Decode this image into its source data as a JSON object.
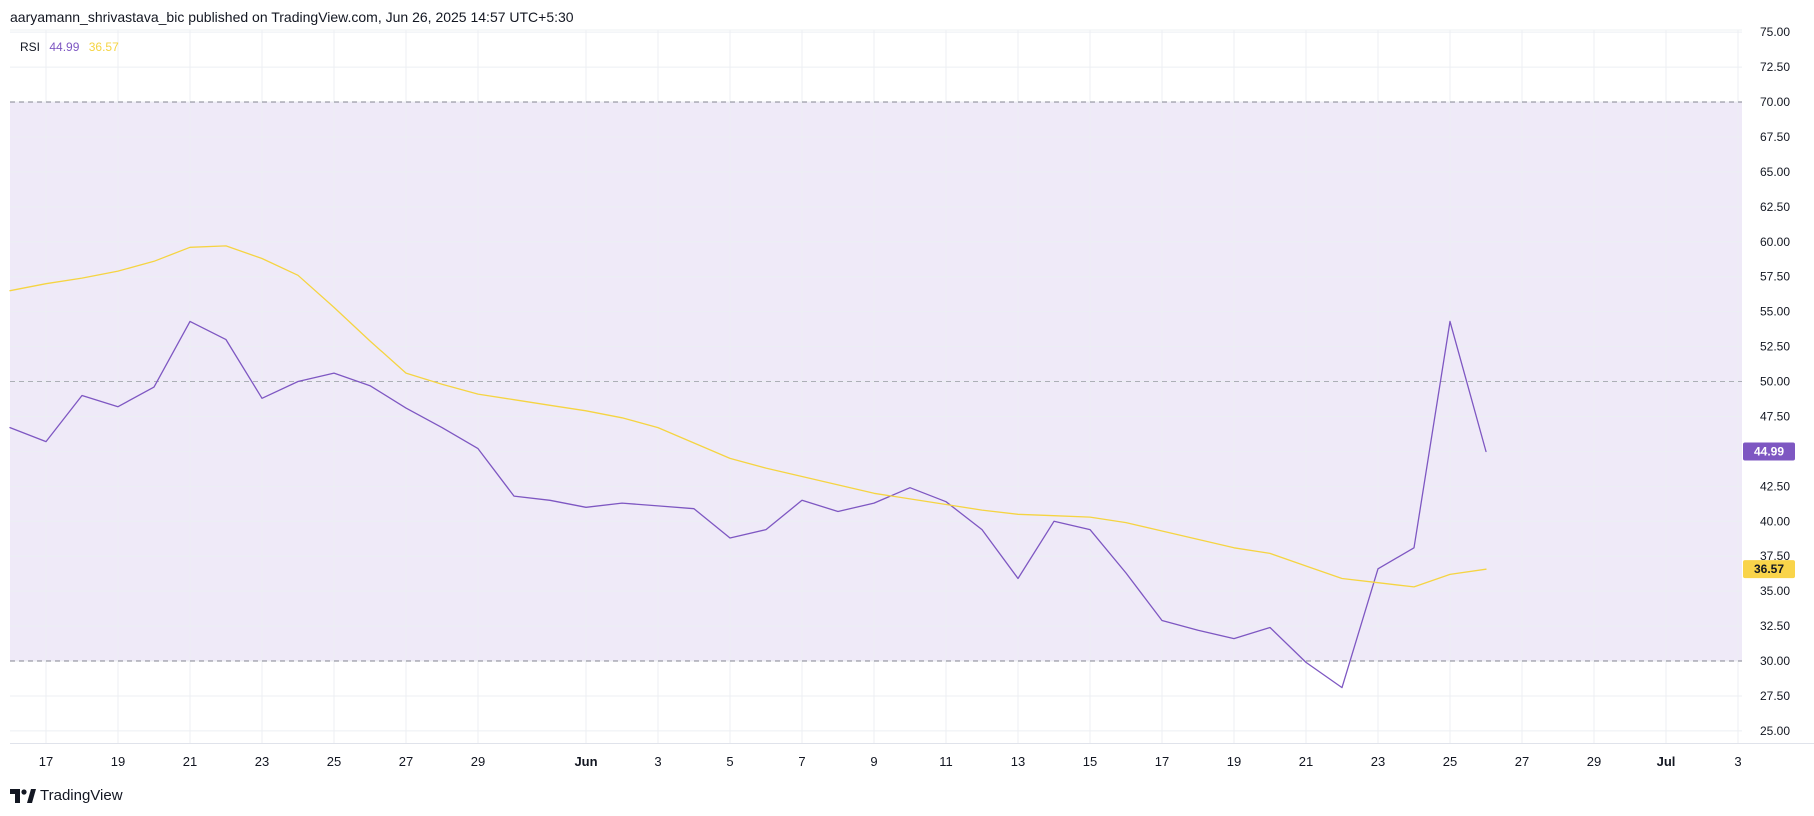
{
  "header": {
    "publish_text": "aaryamann_shrivastava_bic published on TradingView.com, Jun 26, 2025 14:57 UTC+5:30"
  },
  "legend": {
    "indicator": "RSI",
    "rsi_value": "44.99",
    "ma_value": "36.57"
  },
  "footer": {
    "brand": "TradingView"
  },
  "colors": {
    "rsi": "#7e57c2",
    "ma": "#f5d442",
    "band_fill": "#efeaf8",
    "grid": "#eceff3",
    "dashed": "#787b86",
    "badge_rsi_bg": "#7e57c2",
    "badge_rsi_text": "#ffffff",
    "badge_ma_bg": "#f9d44a",
    "badge_ma_text": "#131722"
  },
  "chart_data": {
    "type": "line",
    "title": "",
    "xlabel": "",
    "ylabel": "",
    "ylim": [
      23.5,
      75
    ],
    "y_ticks": [
      "75.00",
      "72.50",
      "70.00",
      "67.50",
      "65.00",
      "62.50",
      "60.00",
      "57.50",
      "55.00",
      "52.50",
      "50.00",
      "47.50",
      "45.00",
      "42.50",
      "40.00",
      "37.50",
      "35.00",
      "32.50",
      "30.00",
      "27.50",
      "25.00"
    ],
    "x_start_day": 16,
    "x_ticks": [
      {
        "day": 17,
        "label": "17"
      },
      {
        "day": 19,
        "label": "19"
      },
      {
        "day": 21,
        "label": "21"
      },
      {
        "day": 23,
        "label": "23"
      },
      {
        "day": 25,
        "label": "25"
      },
      {
        "day": 27,
        "label": "27"
      },
      {
        "day": 29,
        "label": "29"
      },
      {
        "day": 32,
        "label": "Jun"
      },
      {
        "day": 34,
        "label": "3"
      },
      {
        "day": 36,
        "label": "5"
      },
      {
        "day": 38,
        "label": "7"
      },
      {
        "day": 40,
        "label": "9"
      },
      {
        "day": 42,
        "label": "11"
      },
      {
        "day": 44,
        "label": "13"
      },
      {
        "day": 46,
        "label": "15"
      },
      {
        "day": 48,
        "label": "17"
      },
      {
        "day": 50,
        "label": "19"
      },
      {
        "day": 52,
        "label": "21"
      },
      {
        "day": 54,
        "label": "23"
      },
      {
        "day": 56,
        "label": "25"
      },
      {
        "day": 58,
        "label": "27"
      },
      {
        "day": 60,
        "label": "29"
      },
      {
        "day": 62,
        "label": "Jul"
      },
      {
        "day": 64,
        "label": "3"
      }
    ],
    "bands": {
      "upper": 70,
      "middle": 50,
      "lower": 30
    },
    "series": [
      {
        "name": "RSI",
        "values": [
          46.7,
          45.7,
          49.0,
          48.2,
          49.6,
          54.3,
          53.0,
          48.8,
          50.0,
          50.6,
          49.7,
          48.1,
          46.7,
          45.2,
          41.8,
          41.5,
          41.0,
          41.3,
          41.1,
          40.9,
          38.8,
          39.4,
          41.5,
          40.7,
          41.3,
          42.4,
          41.4,
          39.4,
          35.9,
          40.0,
          39.4,
          36.3,
          32.9,
          32.2,
          31.6,
          32.4,
          29.9,
          28.1,
          36.6,
          38.1,
          54.3,
          44.99
        ]
      },
      {
        "name": "RSI-based MA",
        "values": [
          56.5,
          57.0,
          57.4,
          57.9,
          58.6,
          59.6,
          59.7,
          58.8,
          57.6,
          55.3,
          52.9,
          50.6,
          49.8,
          49.1,
          48.7,
          48.3,
          47.9,
          47.4,
          46.7,
          45.6,
          44.5,
          43.8,
          43.2,
          42.6,
          42.0,
          41.6,
          41.2,
          40.8,
          40.5,
          40.4,
          40.3,
          39.9,
          39.3,
          38.7,
          38.1,
          37.7,
          36.8,
          35.9,
          35.6,
          35.3,
          36.2,
          36.57
        ]
      }
    ]
  }
}
